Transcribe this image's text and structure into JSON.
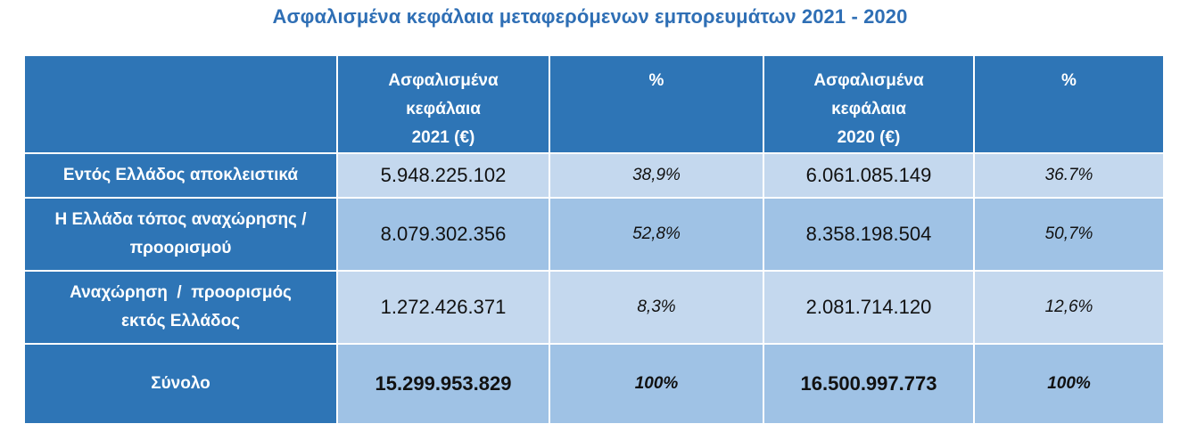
{
  "title": "Ασφαλισμένα κεφάλαια μεταφερόμενων εμπορευμάτων 2021 - 2020",
  "table": {
    "header": {
      "col1": [
        "Ασφαλισμένα",
        "κεφάλαια",
        "2021 (€)"
      ],
      "col2": "%",
      "col3": [
        "Ασφαλισμένα",
        "κεφάλαια",
        "2020 (€)"
      ],
      "col4": "%"
    },
    "rows": [
      {
        "label": [
          "Εντός Ελλάδος αποκλειστικά"
        ],
        "value_2021": "5.948.225.102",
        "pct_2021": "38,9%",
        "value_2020": "6.061.085.149",
        "pct_2020": "36.7%"
      },
      {
        "label": [
          "Η Ελλάδα τόπος αναχώρησης /",
          "προορισμού"
        ],
        "value_2021": "8.079.302.356",
        "pct_2021": "52,8%",
        "value_2020": "8.358.198.504",
        "pct_2020": "50,7%"
      },
      {
        "label": [
          "Αναχώρηση  /  προορισμός",
          "εκτός Ελλάδος"
        ],
        "value_2021": "1.272.426.371",
        "pct_2021": "8,3%",
        "value_2020": "2.081.714.120",
        "pct_2020": "12,6%"
      },
      {
        "label": [
          "Σύνολο"
        ],
        "value_2021": "15.299.953.829",
        "pct_2021": "100%",
        "value_2020": "16.500.997.773",
        "pct_2020": "100%"
      }
    ]
  },
  "colors": {
    "title": "#2f6fb5",
    "header_bg": "#2e75b6",
    "row_light": "#c4d8ee",
    "row_dark": "#9fc2e5"
  }
}
